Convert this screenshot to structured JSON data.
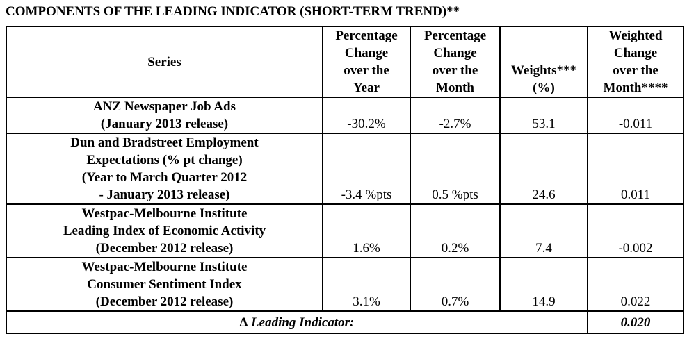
{
  "title": "COMPONENTS OF THE LEADING INDICATOR (SHORT-TERM TREND)**",
  "headers": {
    "series": "Series",
    "pct_year": [
      "Percentage",
      "Change",
      "over the",
      "Year"
    ],
    "pct_month": [
      "Percentage",
      "Change",
      "over the",
      "Month"
    ],
    "weights": [
      "Weights***",
      "(%)"
    ],
    "weighted": [
      "Weighted",
      "Change",
      "over the",
      "Month****"
    ]
  },
  "rows": [
    {
      "name": [
        "ANZ Newspaper Job Ads",
        "(January 2013 release)"
      ],
      "pct_year": "-30.2%",
      "pct_month": "-2.7%",
      "weight": "53.1",
      "weighted": "-0.011"
    },
    {
      "name": [
        "Dun and Bradstreet Employment",
        "Expectations (% pt change)",
        "(Year to March Quarter 2012",
        "- January 2013 release)"
      ],
      "pct_year": "-3.4 %pts",
      "pct_month": "0.5 %pts",
      "weight": "24.6",
      "weighted": "0.011"
    },
    {
      "name": [
        "Westpac-Melbourne Institute",
        "Leading Index of Economic Activity",
        "(December 2012 release)"
      ],
      "pct_year": "1.6%",
      "pct_month": "0.2%",
      "weight": "7.4",
      "weighted": "-0.002"
    },
    {
      "name": [
        "Westpac-Melbourne Institute",
        "Consumer Sentiment Index",
        "(December 2012 release)"
      ],
      "pct_year": "3.1%",
      "pct_month": "0.7%",
      "weight": "14.9",
      "weighted": "0.022"
    }
  ],
  "total": {
    "label": "∆ Leading Indicator:",
    "value": "0.020"
  }
}
